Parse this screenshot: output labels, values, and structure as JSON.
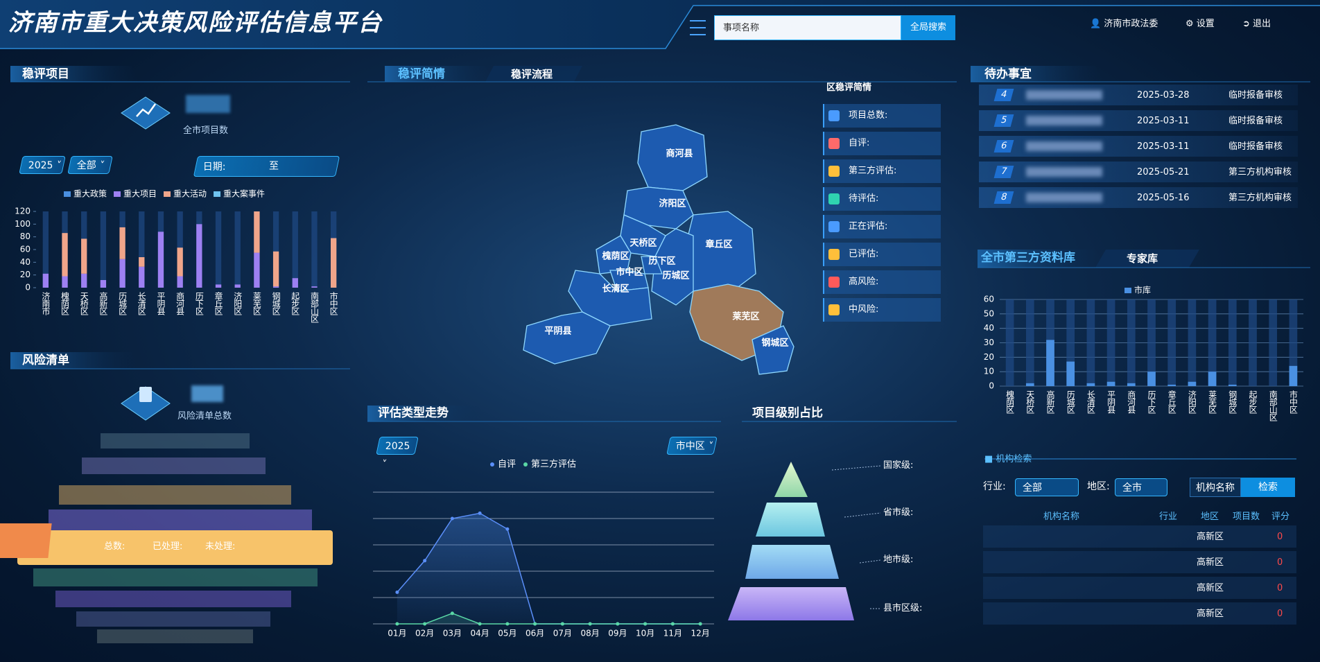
{
  "header": {
    "title": "济南市重大决策风险评估信息平台",
    "search_placeholder": "事项名称",
    "search_button": "全局搜索",
    "user": "济南市政法委",
    "settings": "设置",
    "logout": "退出"
  },
  "left_panel": {
    "project_section": {
      "title": "稳评项目",
      "total_label": "全市项目数",
      "year": "2025",
      "scope": "全部",
      "date_label": "日期:",
      "date_to": "至"
    },
    "risk_section": {
      "title": "风险清单",
      "total_label": "风险清单总数",
      "card": {
        "total": "总数:",
        "processed": "已处理:",
        "unprocessed": "未处理:"
      }
    }
  },
  "center_panel": {
    "tabs": [
      "稳评简情",
      "稳评流程"
    ],
    "map_labels": [
      "商河县",
      "济阳区",
      "天桥区",
      "章丘区",
      "槐荫区",
      "历下区",
      "市中区",
      "历城区",
      "长清区",
      "平阴县",
      "莱芜区",
      "钢城区"
    ],
    "summary": {
      "title": "区稳评简情",
      "items": [
        "项目总数:",
        "自评:",
        "第三方评估:",
        "待评估:",
        "正在评估:",
        "已评估:",
        "高风险:",
        "中风险:"
      ]
    },
    "trend": {
      "title": "评估类型走势",
      "year": "2025",
      "district": "市中区"
    },
    "level": {
      "title": "项目级别占比",
      "levels": [
        "国家级:",
        "省市级:",
        "地市级:",
        "县市区级:"
      ]
    }
  },
  "right_panel": {
    "todo": {
      "title": "待办事宜",
      "rows": [
        {
          "no": 4,
          "date": "2025-03-28",
          "type": "临时报备审核"
        },
        {
          "no": 5,
          "date": "2025-03-11",
          "type": "临时报备审核"
        },
        {
          "no": 6,
          "date": "2025-03-11",
          "type": "临时报备审核"
        },
        {
          "no": 7,
          "date": "2025-05-21",
          "type": "第三方机构审核"
        },
        {
          "no": 8,
          "date": "2025-05-16",
          "type": "第三方机构审核"
        }
      ]
    },
    "library": {
      "tabs": [
        "全市第三方资料库",
        "专家库"
      ]
    },
    "search": {
      "title": "机构检索",
      "industry_label": "行业:",
      "industry": "全部",
      "region_label": "地区:",
      "region": "全市",
      "name_button": "机构名称",
      "search_button": "检索",
      "columns": [
        "机构名称",
        "行业",
        "地区",
        "项目数",
        "评分"
      ],
      "rows": [
        {
          "region": "高新区",
          "score": 0
        },
        {
          "region": "高新区",
          "score": 0
        },
        {
          "region": "高新区",
          "score": 0
        },
        {
          "region": "高新区",
          "score": 0
        }
      ]
    }
  },
  "chart_data": [
    {
      "type": "bar",
      "stacked": true,
      "grid": false,
      "categories": [
        "济南市",
        "槐荫区",
        "天桥区",
        "高新区",
        "历城区",
        "长清区",
        "平阴县",
        "商河县",
        "历下区",
        "章丘区",
        "济阳区",
        "莱芜区",
        "钢城区",
        "起步区",
        "南部山区",
        "市中区"
      ],
      "series": [
        {
          "name": "重大政策",
          "color": "#4a8fe0",
          "values": [
            0,
            0,
            0,
            0,
            0,
            0,
            0,
            0,
            0,
            0,
            0,
            0,
            0,
            0,
            0,
            0
          ]
        },
        {
          "name": "重大项目",
          "color": "#9d80f2",
          "values": [
            22,
            18,
            22,
            12,
            45,
            33,
            88,
            18,
            100,
            5,
            5,
            55,
            2,
            15,
            2,
            0
          ]
        },
        {
          "name": "重大活动",
          "color": "#f0a58a",
          "values": [
            0,
            68,
            55,
            0,
            50,
            15,
            0,
            45,
            0,
            0,
            0,
            65,
            55,
            0,
            0,
            78
          ]
        },
        {
          "name": "重大案事件",
          "color": "#6fc3f0",
          "values": [
            0,
            0,
            0,
            0,
            0,
            0,
            0,
            0,
            0,
            0,
            0,
            0,
            0,
            0,
            0,
            0
          ]
        }
      ],
      "ylim": [
        0,
        120
      ],
      "yticks": [
        0,
        20,
        40,
        60,
        80,
        100,
        120
      ]
    },
    {
      "type": "line",
      "grid": true,
      "categories": [
        "01月",
        "02月",
        "03月",
        "04月",
        "05月",
        "06月",
        "07月",
        "08月",
        "09月",
        "10月",
        "11月",
        "12月"
      ],
      "series": [
        {
          "name": "自评",
          "color": "#5b8ff9",
          "values": [
            1.2,
            2.4,
            4,
            4.2,
            3.6,
            0,
            0,
            0,
            0,
            0,
            0,
            0
          ]
        },
        {
          "name": "第三方评估",
          "color": "#5ad8a6",
          "values": [
            0,
            0,
            0.4,
            0,
            0,
            0,
            0,
            0,
            0,
            0,
            0,
            0
          ]
        }
      ],
      "ylim": [
        0,
        5
      ],
      "yticks": [
        0,
        1,
        2,
        3,
        4,
        5
      ]
    },
    {
      "type": "bar",
      "stacked": false,
      "grid": true,
      "categories": [
        "槐荫区",
        "天桥区",
        "高新区",
        "历城区",
        "长清区",
        "平阴县",
        "商河县",
        "历下区",
        "章丘区",
        "济阳区",
        "莱芜区",
        "钢城区",
        "起步区",
        "南部山区",
        "市中区"
      ],
      "series": [
        {
          "name": "市库",
          "color": "#4a90e2",
          "values": [
            0,
            2,
            32,
            17,
            2,
            3,
            2,
            10,
            1,
            3,
            10,
            1,
            0,
            0,
            14
          ]
        }
      ],
      "ylim": [
        0,
        60
      ],
      "yticks": [
        0,
        10,
        20,
        30,
        40,
        50,
        60
      ]
    }
  ]
}
